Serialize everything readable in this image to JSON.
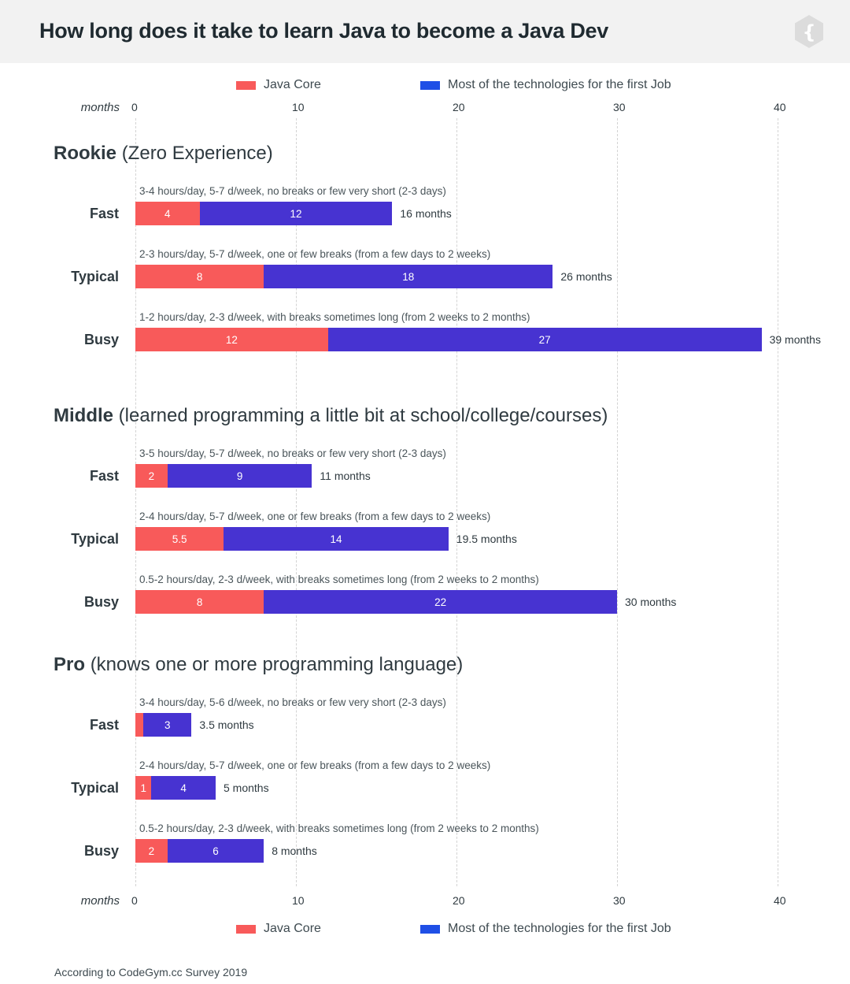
{
  "title": "How long does it take to learn Java to become a Java Dev",
  "logo_icon": "curly-brace-hexagon-icon",
  "legend": [
    {
      "label": "Java Core",
      "color": "#f85a5a"
    },
    {
      "label": "Most of the technologies for the first Job",
      "color": "#1f4fe6"
    }
  ],
  "axis_unit": "months",
  "ticks": [
    "0",
    "10",
    "20",
    "30",
    "40"
  ],
  "footnote": "According to CodeGym.cc Survey 2019",
  "chart_data": {
    "type": "bar",
    "orientation": "horizontal",
    "stacked": true,
    "xlim": [
      0,
      40
    ],
    "xlabel": "months",
    "grid": true,
    "legend_position": "top and bottom",
    "series_names": [
      "Java Core",
      "Most of the technologies for the first Job"
    ],
    "groups": [
      {
        "name": "Rookie",
        "subtitle": "(Zero Experience)",
        "rows": [
          {
            "label": "Fast",
            "desc": "3-4 hours/day, 5-7 d/week, no breaks or few very short (2-3 days)",
            "core": 4,
            "core_label": "4",
            "tech": 12,
            "tech_label": "12",
            "total": "16 months"
          },
          {
            "label": "Typical",
            "desc": "2-3 hours/day, 5-7 d/week, one or few breaks (from a few days to 2 weeks)",
            "core": 8,
            "core_label": "8",
            "tech": 18,
            "tech_label": "18",
            "total": "26 months"
          },
          {
            "label": "Busy",
            "desc": "1-2 hours/day, 2-3 d/week, with breaks sometimes long (from 2 weeks to 2 months)",
            "core": 12,
            "core_label": "12",
            "tech": 27,
            "tech_label": "27",
            "total": "39 months"
          }
        ]
      },
      {
        "name": "Middle",
        "subtitle": "(learned programming a little bit at school/college/courses)",
        "rows": [
          {
            "label": "Fast",
            "desc": "3-5 hours/day, 5-7 d/week, no breaks or few very short (2-3 days)",
            "core": 2,
            "core_label": "2",
            "tech": 9,
            "tech_label": "9",
            "total": "11 months"
          },
          {
            "label": "Typical",
            "desc": "2-4 hours/day, 5-7 d/week, one or few breaks (from a few days to 2 weeks)",
            "core": 5.5,
            "core_label": "5.5",
            "tech": 14,
            "tech_label": "14",
            "total": "19.5 months"
          },
          {
            "label": "Busy",
            "desc": "0.5-2 hours/day, 2-3 d/week, with breaks sometimes long (from 2 weeks to 2 months)",
            "core": 8,
            "core_label": "8",
            "tech": 22,
            "tech_label": "22",
            "total": "30 months"
          }
        ]
      },
      {
        "name": "Pro",
        "subtitle": "(knows one or more programming language)",
        "rows": [
          {
            "label": "Fast",
            "desc": "3-4 hours/day, 5-6 d/week, no breaks or few very short (2-3 days)",
            "core": 0.5,
            "core_label": "",
            "tech": 3,
            "tech_label": "3",
            "total": "3.5 months"
          },
          {
            "label": "Typical",
            "desc": "2-4 hours/day, 5-7 d/week, one or few breaks (from a few days to 2 weeks)",
            "core": 1,
            "core_label": "1",
            "tech": 4,
            "tech_label": "4",
            "total": "5 months"
          },
          {
            "label": "Busy",
            "desc": "0.5-2 hours/day, 2-3 d/week, with breaks sometimes long (from 2 weeks to 2 months)",
            "core": 2,
            "core_label": "2",
            "tech": 6,
            "tech_label": "6",
            "total": "8 months"
          }
        ]
      }
    ]
  }
}
